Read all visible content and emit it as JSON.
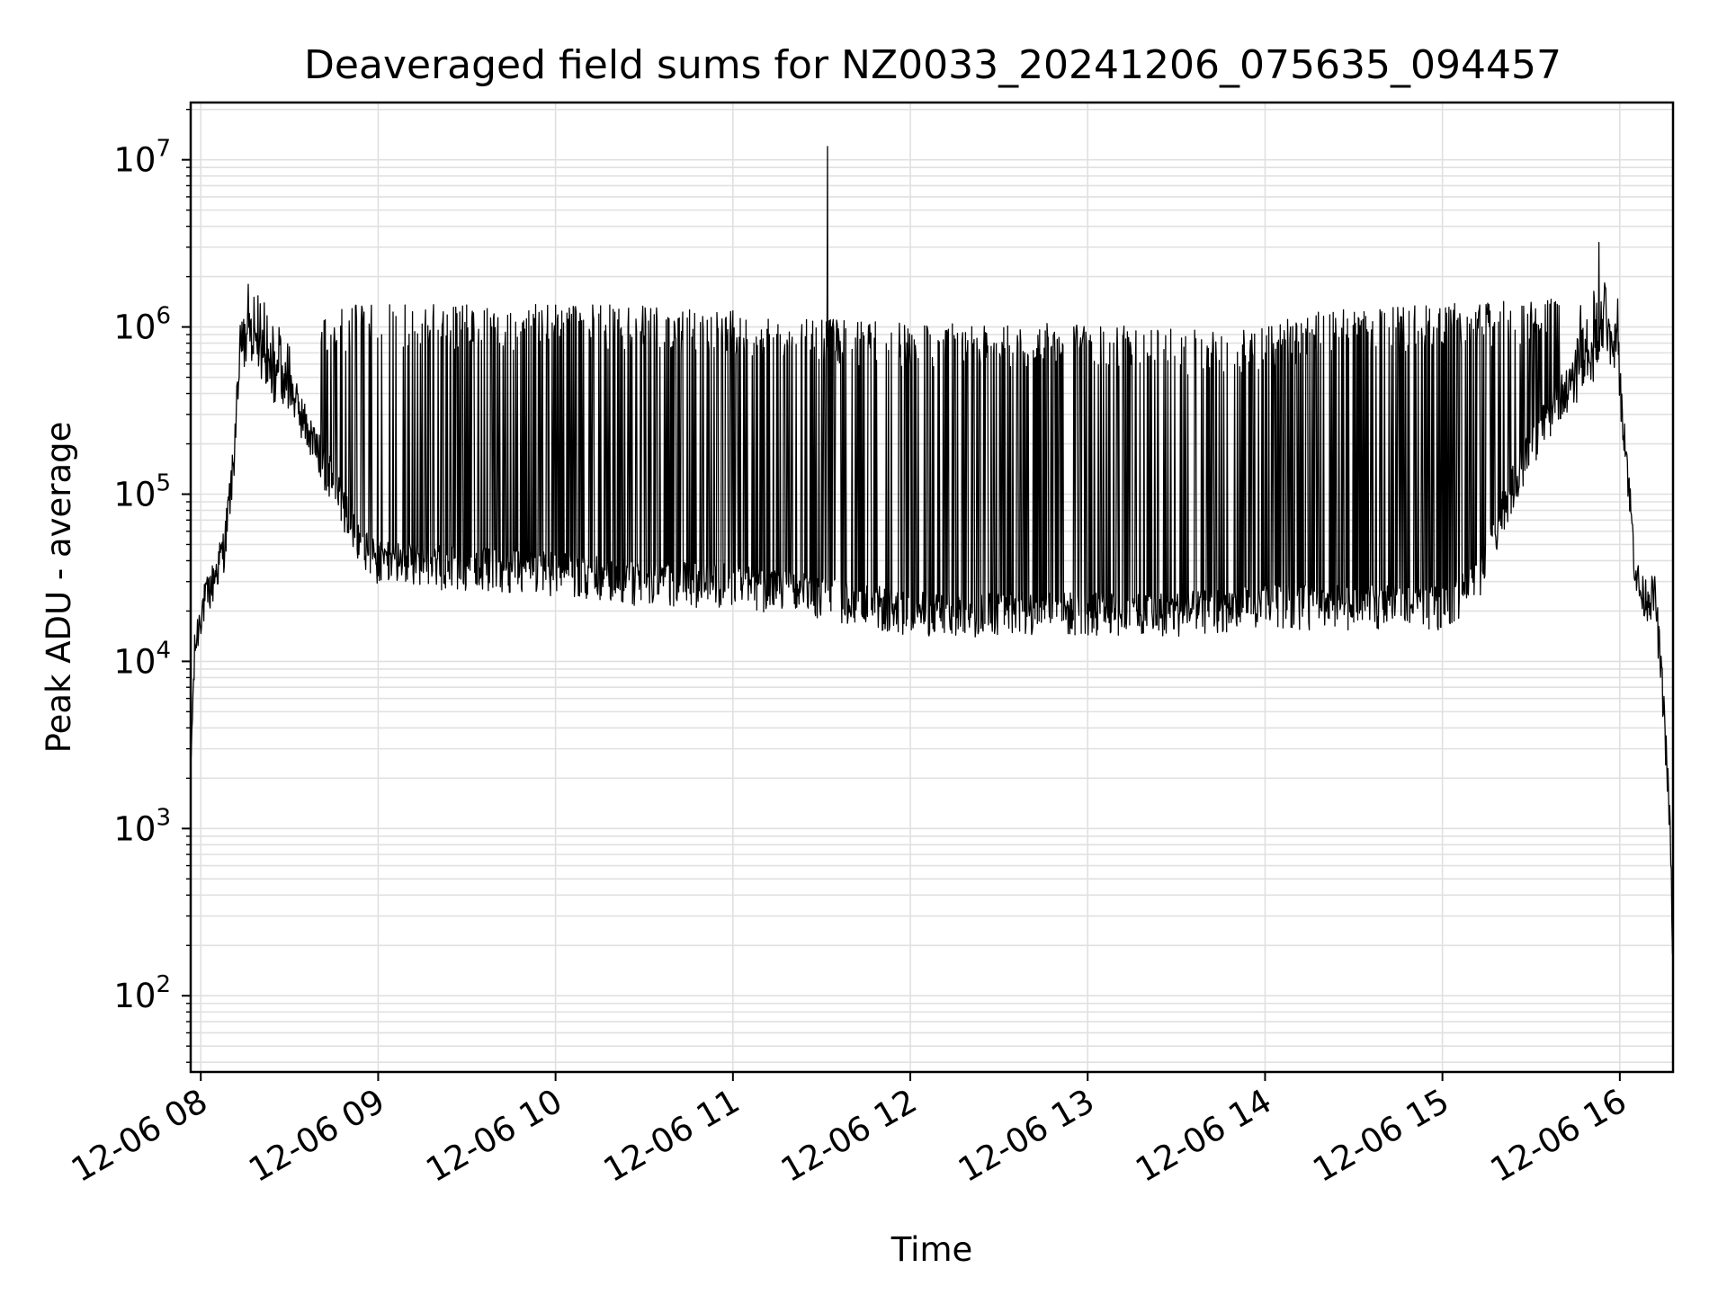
{
  "chart_data": {
    "type": "line",
    "title": "Deaveraged field sums for NZ0033_20241206_075635_094457",
    "xlabel": "Time",
    "ylabel": "Peak ADU - average",
    "yscale": "log",
    "ylim": [
      35,
      22000000
    ],
    "xlim": [
      "2024-12-06 07:56:35",
      "2024-12-06 16:18:00"
    ],
    "grid": true,
    "legend": "none",
    "line_color": "#000000",
    "grid_color": "#e0e0e0",
    "x_ticks": [
      {
        "t": "2024-12-06 08:00",
        "label": "12-06 08"
      },
      {
        "t": "2024-12-06 09:00",
        "label": "12-06 09"
      },
      {
        "t": "2024-12-06 10:00",
        "label": "12-06 10"
      },
      {
        "t": "2024-12-06 11:00",
        "label": "12-06 11"
      },
      {
        "t": "2024-12-06 12:00",
        "label": "12-06 12"
      },
      {
        "t": "2024-12-06 13:00",
        "label": "12-06 13"
      },
      {
        "t": "2024-12-06 14:00",
        "label": "12-06 14"
      },
      {
        "t": "2024-12-06 15:00",
        "label": "12-06 15"
      },
      {
        "t": "2024-12-06 16:00",
        "label": "12-06 16"
      }
    ],
    "y_ticks": [
      {
        "value": 100,
        "base": "10",
        "exp": "2"
      },
      {
        "value": 1000,
        "base": "10",
        "exp": "3"
      },
      {
        "value": 10000,
        "base": "10",
        "exp": "4"
      },
      {
        "value": 100000,
        "base": "10",
        "exp": "5"
      },
      {
        "value": 1000000,
        "base": "10",
        "exp": "6"
      },
      {
        "value": 10000000,
        "base": "10",
        "exp": "7"
      }
    ],
    "series": [
      {
        "baseline": [
          [
            "2024-12-06 07:56:35",
            2000
          ],
          [
            "2024-12-06 07:57",
            4000
          ],
          [
            "2024-12-06 07:58",
            12000
          ],
          [
            "2024-12-06 08:00",
            20000
          ],
          [
            "2024-12-06 08:04",
            30000
          ],
          [
            "2024-12-06 08:08",
            50000
          ],
          [
            "2024-12-06 08:11",
            150000
          ],
          [
            "2024-12-06 08:13",
            600000
          ],
          [
            "2024-12-06 08:17",
            900000
          ],
          [
            "2024-12-06 08:24",
            500000
          ],
          [
            "2024-12-06 08:30",
            450000
          ],
          [
            "2024-12-06 08:36",
            250000
          ],
          [
            "2024-12-06 08:42",
            150000
          ],
          [
            "2024-12-06 08:48",
            90000
          ],
          [
            "2024-12-06 08:54",
            50000
          ],
          [
            "2024-12-06 09:00",
            40000
          ],
          [
            "2024-12-06 10:00",
            35000
          ],
          [
            "2024-12-06 10:30",
            30000
          ],
          [
            "2024-12-06 11:00",
            30000
          ],
          [
            "2024-12-06 11:30",
            25000
          ],
          [
            "2024-12-06 12:00",
            20000
          ],
          [
            "2024-12-06 12:30",
            20000
          ],
          [
            "2024-12-06 13:00",
            20000
          ],
          [
            "2024-12-06 13:30",
            20000
          ],
          [
            "2024-12-06 14:00",
            22000
          ],
          [
            "2024-12-06 14:30",
            22000
          ],
          [
            "2024-12-06 15:00",
            22000
          ],
          [
            "2024-12-06 15:12",
            30000
          ],
          [
            "2024-12-06 15:20",
            80000
          ],
          [
            "2024-12-06 15:30",
            200000
          ],
          [
            "2024-12-06 15:40",
            400000
          ],
          [
            "2024-12-06 15:50",
            600000
          ],
          [
            "2024-12-06 15:55",
            1000000
          ],
          [
            "2024-12-06 15:59",
            700000
          ],
          [
            "2024-12-06 16:02",
            200000
          ],
          [
            "2024-12-06 16:05",
            40000
          ],
          [
            "2024-12-06 16:07",
            25000
          ],
          [
            "2024-12-06 16:12",
            25000
          ],
          [
            "2024-12-06 16:15",
            5000
          ],
          [
            "2024-12-06 16:17",
            1000
          ],
          [
            "2024-12-06 16:18",
            160
          ]
        ],
        "peak_envelope": [
          [
            "2024-12-06 08:40",
            1300000
          ],
          [
            "2024-12-06 10:30",
            1300000
          ],
          [
            "2024-12-06 11:00",
            1200000
          ],
          [
            "2024-12-06 12:00",
            1000000
          ],
          [
            "2024-12-06 13:00",
            1000000
          ],
          [
            "2024-12-06 13:50",
            900000
          ],
          [
            "2024-12-06 14:20",
            1200000
          ],
          [
            "2024-12-06 15:00",
            1300000
          ],
          [
            "2024-12-06 15:40",
            1500000
          ]
        ],
        "spikes": [
          [
            "2024-12-06 08:16",
            1800000
          ],
          [
            "2024-12-06 11:32",
            12000000
          ],
          [
            "2024-12-06 15:53",
            3200000
          ]
        ]
      }
    ]
  }
}
